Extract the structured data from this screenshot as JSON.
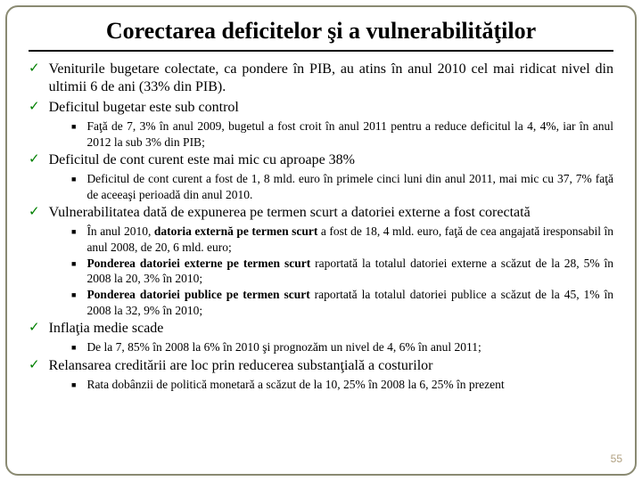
{
  "title": "Corectarea deficitelor şi a vulnerabilităţilor",
  "page_number": "55",
  "colors": {
    "check": "#008000",
    "frame_border": "#8a8a72",
    "page_num": "#b0a080",
    "text": "#000000",
    "background": "#ffffff"
  },
  "bullets": [
    {
      "text": "Veniturile bugetare colectate, ca pondere în PIB, au atins în anul 2010 cel mai ridicat nivel din ultimii 6 de ani (33% din PIB).",
      "subs": []
    },
    {
      "text": "Deficitul bugetar este sub control",
      "subs": [
        {
          "html": "Faţă de 7, 3% în anul 2009, bugetul a fost croit în anul 2011 pentru a reduce deficitul la 4, 4%, iar în anul 2012 la sub 3% din PIB;"
        }
      ]
    },
    {
      "text": "Deficitul de cont curent este mai mic cu aproape 38%",
      "subs": [
        {
          "html": "Deficitul de cont curent a fost de 1, 8 mld. euro în primele cinci luni din anul 2011, mai mic cu 37, 7% faţă de aceeaşi perioadă din anul 2010."
        }
      ]
    },
    {
      "text": "Vulnerabilitatea dată de expunerea pe termen scurt a datoriei externe a fost corectată",
      "subs": [
        {
          "html": "În anul 2010, <b>datoria externă pe termen scurt</b> a fost de 18, 4 mld. euro, faţă de cea angajată iresponsabil în anul 2008, de 20, 6 mld. euro;"
        },
        {
          "html": "<b>Ponderea datoriei externe pe termen scurt</b> raportată la totalul datoriei externe a scăzut de la 28, 5% în 2008 la 20, 3% în 2010;"
        },
        {
          "html": "<b>Ponderea datoriei publice pe termen scurt</b> raportată la totalul datoriei publice a scăzut de la 45, 1% în 2008 la 32, 9% în 2010;"
        }
      ]
    },
    {
      "text": "Inflaţia medie scade",
      "subs": [
        {
          "html": "De la 7, 85% în 2008 la 6% în 2010 şi prognozăm un nivel de 4, 6% în anul 2011;"
        }
      ]
    },
    {
      "text": "Relansarea creditării are loc prin reducerea substanţială a costurilor",
      "subs": [
        {
          "html": "Rata dobânzii de politică monetară a scăzut de la 10, 25% în 2008 la 6, 25% în prezent"
        }
      ]
    }
  ]
}
